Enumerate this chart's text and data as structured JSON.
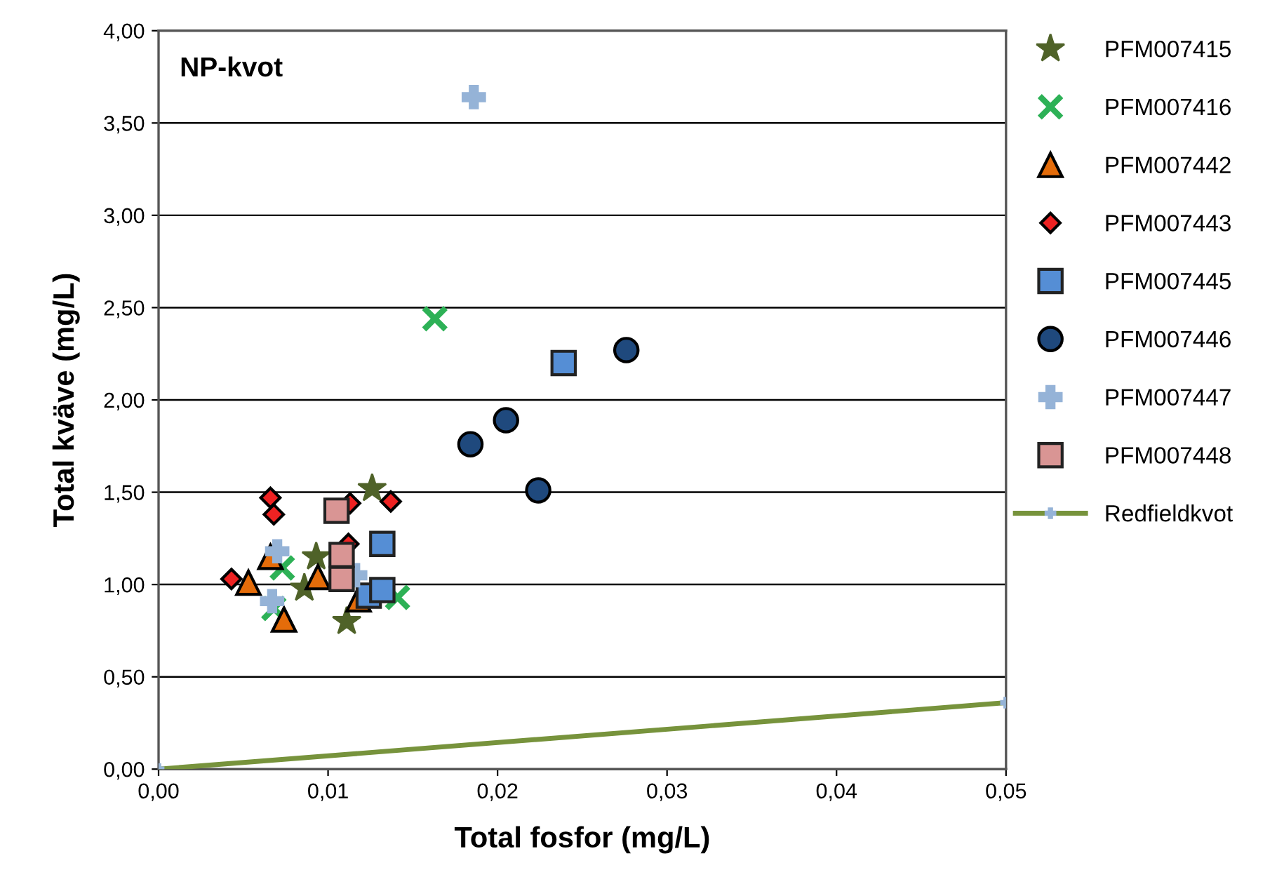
{
  "chart_data": {
    "type": "scatter",
    "title": "NP-kvot",
    "xlabel": "Total fosfor (mg/L)",
    "ylabel": "Total kväve (mg/L)",
    "xlim": [
      0,
      0.05
    ],
    "ylim": [
      0,
      4
    ],
    "xticks": [
      {
        "value": 0,
        "label": "0,00"
      },
      {
        "value": 0.01,
        "label": "0,01"
      },
      {
        "value": 0.02,
        "label": "0,02"
      },
      {
        "value": 0.03,
        "label": "0,03"
      },
      {
        "value": 0.04,
        "label": "0,04"
      },
      {
        "value": 0.05,
        "label": "0,05"
      }
    ],
    "yticks": [
      {
        "value": 0,
        "label": "0,00"
      },
      {
        "value": 0.5,
        "label": "0,50"
      },
      {
        "value": 1,
        "label": "1,00"
      },
      {
        "value": 1.5,
        "label": "1,50"
      },
      {
        "value": 2,
        "label": "2,00"
      },
      {
        "value": 2.5,
        "label": "2,50"
      },
      {
        "value": 3,
        "label": "3,00"
      },
      {
        "value": 3.5,
        "label": "3,50"
      },
      {
        "value": 4,
        "label": "4,00"
      }
    ],
    "grid": "y",
    "legend": "right",
    "series": [
      {
        "name": "PFM007415",
        "color": "#4f6228",
        "marker": "star",
        "x": [
          0.0126,
          0.0093,
          0.0086,
          0.0111
        ],
        "values": [
          1.52,
          1.15,
          0.98,
          0.8
        ]
      },
      {
        "name": "PFM007416",
        "color": "#2db156",
        "marker": "cross",
        "x": [
          0.0073,
          0.0068,
          0.0141,
          0.0163
        ],
        "values": [
          1.09,
          0.87,
          0.93,
          2.44
        ]
      },
      {
        "name": "PFM007442",
        "color": "#e46c0a",
        "marker": "triangle",
        "x": [
          0.0066,
          0.0053,
          0.0074,
          0.0094,
          0.0118
        ],
        "values": [
          1.15,
          1.01,
          0.81,
          1.04,
          0.92
        ]
      },
      {
        "name": "PFM007443",
        "color": "#ee2222",
        "marker": "diamond",
        "x": [
          0.0066,
          0.0068,
          0.0043,
          0.0113,
          0.0137,
          0.0112
        ],
        "values": [
          1.47,
          1.38,
          1.03,
          1.44,
          1.45,
          1.22
        ]
      },
      {
        "name": "PFM007445",
        "color": "#558ed5",
        "marker": "square",
        "x": [
          0.0132,
          0.0124,
          0.0132,
          0.0239
        ],
        "values": [
          1.22,
          0.94,
          0.97,
          2.2
        ]
      },
      {
        "name": "PFM007446",
        "color": "#1f497d",
        "marker": "circle",
        "x": [
          0.0184,
          0.0205,
          0.0224,
          0.0276
        ],
        "values": [
          1.76,
          1.89,
          1.51,
          2.27
        ]
      },
      {
        "name": "PFM007447",
        "color": "#95b3d7",
        "marker": "plus",
        "x": [
          0.007,
          0.0067,
          0.0116,
          0.0186
        ],
        "values": [
          1.18,
          0.91,
          1.05,
          3.64
        ]
      },
      {
        "name": "PFM007448",
        "color": "#d99594",
        "marker": "square",
        "x": [
          0.0105,
          0.0108,
          0.0108
        ],
        "values": [
          1.4,
          1.16,
          1.03
        ]
      },
      {
        "name": "Redfieldkvot",
        "type": "line",
        "color": "#77933c",
        "marker": "plus",
        "x": [
          0,
          0.05
        ],
        "values": [
          0,
          0.36
        ]
      }
    ]
  }
}
